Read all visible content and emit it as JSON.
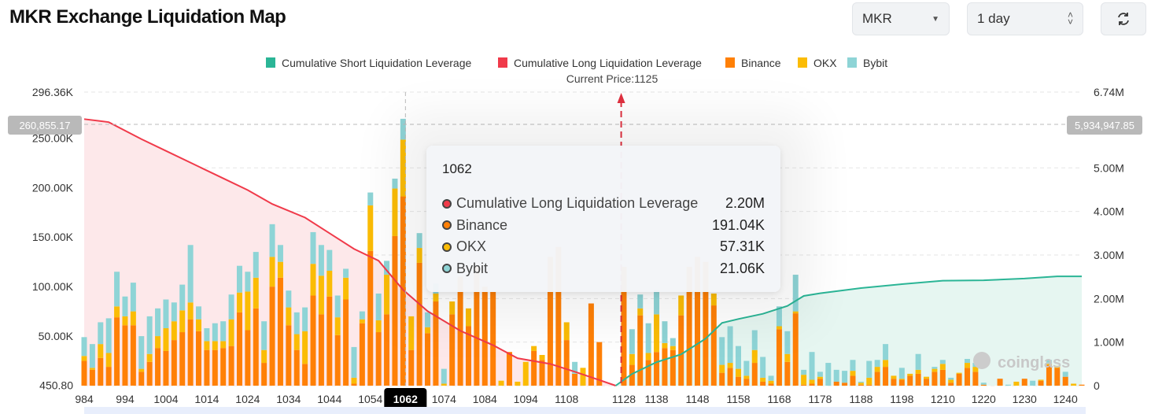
{
  "header": {
    "title": "MKR Exchange Liquidation Map",
    "symbol": "MKR",
    "period": "1 day"
  },
  "colors": {
    "short": "#2bb596",
    "long": "#f03a4a",
    "binance": "#ff8006",
    "okx": "#fbbc05",
    "bybit": "#8ed4d6"
  },
  "chart_data": {
    "type": "bar",
    "title": "MKR Exchange Liquidation Map",
    "legend": [
      "Cumulative Short Liquidation Leverage",
      "Cumulative Long Liquidation Leverage",
      "Binance",
      "OKX",
      "Bybit"
    ],
    "legend_position": "top-center",
    "current_price_label": "Current Price:1125",
    "current_price_index": 65,
    "left_axis": {
      "min": 450.8,
      "max": 296360,
      "ticks": [
        "296.36K",
        "250.00K",
        "200.00K",
        "150.00K",
        "100.00K",
        "50.00K",
        "450.80"
      ],
      "tick_values": [
        296.36,
        250,
        200,
        150,
        100,
        50,
        0.45
      ]
    },
    "right_axis": {
      "min": 0,
      "max": 6.74,
      "unit": "M",
      "ticks": [
        "6.74M",
        "5.00M",
        "4.00M",
        "3.00M",
        "2.00M",
        "1.00M",
        "0"
      ],
      "tick_values": [
        6.74,
        5,
        4,
        3,
        2,
        1,
        0
      ]
    },
    "x_ticks": [
      {
        "i": 0,
        "label": "984"
      },
      {
        "i": 5,
        "label": "994"
      },
      {
        "i": 10,
        "label": "1004"
      },
      {
        "i": 15,
        "label": "1014"
      },
      {
        "i": 20,
        "label": "1024"
      },
      {
        "i": 25,
        "label": "1034"
      },
      {
        "i": 30,
        "label": "1044"
      },
      {
        "i": 35,
        "label": "1054"
      },
      {
        "i": 44,
        "label": "1074"
      },
      {
        "i": 49,
        "label": "1084"
      },
      {
        "i": 54,
        "label": "1094"
      },
      {
        "i": 59,
        "label": "1108"
      },
      {
        "i": 66,
        "label": "1128"
      },
      {
        "i": 70,
        "label": "1138"
      },
      {
        "i": 75,
        "label": "1148"
      },
      {
        "i": 80,
        "label": "1158"
      },
      {
        "i": 85,
        "label": "1168"
      },
      {
        "i": 90,
        "label": "1178"
      },
      {
        "i": 95,
        "label": "1188"
      },
      {
        "i": 100,
        "label": "1198"
      },
      {
        "i": 105,
        "label": "1210"
      },
      {
        "i": 110,
        "label": "1220"
      },
      {
        "i": 115,
        "label": "1230"
      },
      {
        "i": 120,
        "label": "1240"
      }
    ],
    "bars_unit": "K",
    "bars": [
      [
        25,
        5,
        19
      ],
      [
        16,
        2,
        24
      ],
      [
        28,
        14,
        22
      ],
      [
        19,
        14,
        35
      ],
      [
        69,
        11,
        35
      ],
      [
        61,
        9,
        20
      ],
      [
        61,
        14,
        29
      ],
      [
        14,
        3,
        33
      ],
      [
        24,
        8,
        38
      ],
      [
        38,
        12,
        28
      ],
      [
        35,
        23,
        29
      ],
      [
        46,
        19,
        19
      ],
      [
        54,
        22,
        26
      ],
      [
        67,
        17,
        58
      ],
      [
        55,
        12,
        13
      ],
      [
        36,
        9,
        13
      ],
      [
        36,
        9,
        18
      ],
      [
        38,
        7,
        20
      ],
      [
        40,
        27,
        25
      ],
      [
        74,
        20,
        27
      ],
      [
        56,
        39,
        20
      ],
      [
        78,
        31,
        26
      ],
      [
        23,
        13,
        29
      ],
      [
        100,
        30,
        33
      ],
      [
        109,
        16,
        17
      ],
      [
        61,
        18,
        17
      ],
      [
        36,
        16,
        22
      ],
      [
        22,
        33,
        24
      ],
      [
        91,
        32,
        32
      ],
      [
        72,
        39,
        31
      ],
      [
        90,
        26,
        21
      ],
      [
        51,
        18,
        22
      ],
      [
        87,
        22,
        9
      ],
      [
        2,
        6,
        31
      ],
      [
        63,
        4,
        8
      ],
      [
        136,
        46,
        13
      ],
      [
        54,
        12,
        27
      ],
      [
        72,
        40,
        14
      ],
      [
        151,
        48,
        10
      ],
      [
        191.04,
        57.31,
        21.06
      ],
      [
        36,
        34,
        0
      ],
      [
        124,
        15,
        15
      ],
      [
        53,
        6,
        15
      ],
      [
        85,
        8,
        10
      ],
      [
        0,
        2,
        15
      ],
      [
        72,
        13,
        0
      ],
      [
        110,
        0,
        0
      ],
      [
        60,
        18,
        0
      ],
      [
        120,
        0,
        0
      ],
      [
        100,
        0,
        0
      ],
      [
        95,
        0,
        0
      ],
      [
        0,
        5,
        0
      ],
      [
        34,
        0,
        0
      ],
      [
        0,
        4,
        0
      ],
      [
        0,
        24,
        0
      ],
      [
        35,
        5,
        0
      ],
      [
        26,
        5,
        0
      ],
      [
        130,
        0,
        0
      ],
      [
        140,
        0,
        0
      ],
      [
        46,
        18,
        0
      ],
      [
        12,
        0,
        12
      ],
      [
        0,
        18,
        0
      ],
      [
        83,
        0,
        0
      ],
      [
        44,
        0,
        0
      ],
      [
        0,
        0,
        0
      ],
      [
        0,
        0,
        0
      ],
      [
        120,
        0,
        0
      ],
      [
        21,
        11,
        25
      ],
      [
        71,
        7,
        14
      ],
      [
        26,
        7,
        30
      ],
      [
        34,
        38,
        25
      ],
      [
        38,
        5,
        22
      ],
      [
        36,
        4,
        8
      ],
      [
        71,
        20,
        0
      ],
      [
        120,
        0,
        0
      ],
      [
        130,
        0,
        0
      ],
      [
        125,
        0,
        0
      ],
      [
        81,
        12,
        0
      ],
      [
        13,
        8,
        28
      ],
      [
        18,
        5,
        37
      ],
      [
        9,
        8,
        23
      ],
      [
        7,
        3,
        15
      ],
      [
        23,
        13,
        20
      ],
      [
        4,
        4,
        21
      ],
      [
        2,
        3,
        5
      ],
      [
        57,
        3,
        20
      ],
      [
        24,
        8,
        23
      ],
      [
        73,
        2,
        37
      ],
      [
        1,
        10,
        5
      ],
      [
        2,
        4,
        28
      ],
      [
        7,
        2,
        5
      ],
      [
        0,
        0,
        23
      ],
      [
        4,
        0,
        12
      ],
      [
        3,
        0,
        12
      ],
      [
        10,
        5,
        11
      ],
      [
        1,
        2,
        1
      ],
      [
        1,
        7,
        17
      ],
      [
        14,
        5,
        7
      ],
      [
        19,
        7,
        16
      ],
      [
        7,
        3,
        0
      ],
      [
        6,
        1,
        11
      ],
      [
        10,
        2,
        0
      ],
      [
        12,
        4,
        16
      ],
      [
        7,
        2,
        0
      ],
      [
        14,
        3,
        2
      ],
      [
        16,
        6,
        4
      ],
      [
        3,
        3,
        2
      ],
      [
        12,
        1,
        0
      ],
      [
        18,
        5,
        4
      ],
      [
        14,
        5,
        4
      ],
      [
        1,
        0,
        2
      ],
      [
        0,
        0,
        0
      ],
      [
        7,
        0,
        0
      ],
      [
        0,
        0,
        1
      ],
      [
        0,
        4,
        0
      ],
      [
        7,
        0,
        0
      ],
      [
        0,
        0,
        5
      ],
      [
        5,
        1,
        0
      ],
      [
        21,
        1,
        4
      ],
      [
        18,
        2,
        0
      ],
      [
        9,
        0,
        5
      ],
      [
        0,
        2,
        0
      ],
      [
        1,
        0,
        0
      ]
    ],
    "long_cumulative_M": [
      [
        0,
        6.12
      ],
      [
        3,
        6.05
      ],
      [
        7,
        5.66
      ],
      [
        10,
        5.39
      ],
      [
        13,
        5.12
      ],
      [
        17,
        4.76
      ],
      [
        20,
        4.49
      ],
      [
        23,
        4.17
      ],
      [
        27,
        3.86
      ],
      [
        30,
        3.5
      ],
      [
        33,
        3.14
      ],
      [
        36,
        2.87
      ],
      [
        39,
        2.2
      ],
      [
        42,
        1.71
      ],
      [
        46,
        1.26
      ],
      [
        50,
        0.93
      ],
      [
        53,
        0.63
      ],
      [
        57,
        0.5
      ],
      [
        60,
        0.32
      ],
      [
        63,
        0.13
      ],
      [
        65,
        0
      ]
    ],
    "short_cumulative_M": [
      [
        65,
        0
      ],
      [
        67,
        0.27
      ],
      [
        70,
        0.54
      ],
      [
        73,
        0.72
      ],
      [
        76,
        1.08
      ],
      [
        78,
        1.44
      ],
      [
        80,
        1.53
      ],
      [
        83,
        1.65
      ],
      [
        86,
        1.83
      ],
      [
        88,
        2.06
      ],
      [
        90,
        2.12
      ],
      [
        95,
        2.24
      ],
      [
        100,
        2.33
      ],
      [
        105,
        2.41
      ],
      [
        110,
        2.42
      ],
      [
        115,
        2.46
      ],
      [
        119,
        2.51
      ],
      [
        122,
        2.51
      ]
    ]
  },
  "crosshair": {
    "index": 39,
    "x_label": "1062",
    "left_value": "260,855.17",
    "right_value": "5,934,947.85"
  },
  "tooltip": {
    "title": "1062",
    "rows": [
      {
        "label": "Cumulative Long Liquidation Leverage",
        "value": "2.20M",
        "color": "#f03a4a"
      },
      {
        "label": "Binance",
        "value": "191.04K",
        "color": "#ff8006"
      },
      {
        "label": "OKX",
        "value": "57.31K",
        "color": "#fbbc05"
      },
      {
        "label": "Bybit",
        "value": "21.06K",
        "color": "#8ed4d6"
      }
    ]
  },
  "watermark": "coinglass"
}
